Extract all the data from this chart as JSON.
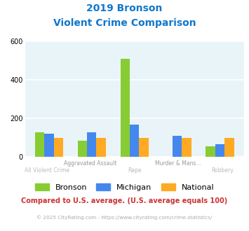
{
  "title_line1": "2019 Bronson",
  "title_line2": "Violent Crime Comparison",
  "top_labels": [
    "",
    "Aggravated Assault",
    "",
    "Murder & Mans...",
    ""
  ],
  "bottom_labels": [
    "All Violent Crime",
    "",
    "Rape",
    "",
    "Robbery"
  ],
  "bronson": [
    130,
    85,
    510,
    0,
    55
  ],
  "michigan": [
    120,
    128,
    170,
    112,
    68
  ],
  "national": [
    100,
    100,
    100,
    100,
    100
  ],
  "colors": {
    "bronson": "#88cc33",
    "michigan": "#4488ee",
    "national": "#ffaa22"
  },
  "ylim": [
    0,
    600
  ],
  "yticks": [
    0,
    200,
    400,
    600
  ],
  "bg_color": "#e8f4f8",
  "title_color": "#1177cc",
  "top_label_color": "#999999",
  "bot_label_color": "#bbbbbb",
  "footnote1": "Compared to U.S. average. (U.S. average equals 100)",
  "footnote2": "© 2025 CityRating.com - https://www.cityrating.com/crime-statistics/",
  "footnote1_color": "#cc3333",
  "footnote2_color": "#aaaaaa"
}
